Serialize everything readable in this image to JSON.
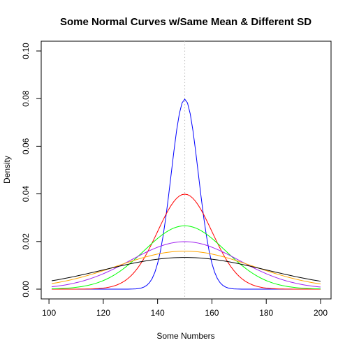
{
  "chart_data": {
    "type": "line",
    "title": "Some Normal Curves w/Same Mean & Different SD",
    "xlabel": "Some Numbers",
    "ylabel": "Density",
    "xlim": [
      101,
      200
    ],
    "ylim": [
      0,
      0.1
    ],
    "x_ticks": [
      100,
      120,
      140,
      160,
      180,
      200
    ],
    "y_ticks": [
      0.0,
      0.02,
      0.04,
      0.06,
      0.08,
      0.1
    ],
    "x_tick_labels": [
      "100",
      "120",
      "140",
      "160",
      "180",
      "200"
    ],
    "y_tick_labels": [
      "0.00",
      "0.02",
      "0.04",
      "0.06",
      "0.08",
      "0.10"
    ],
    "mean_line": {
      "x": 150,
      "color": "#bbbbbb",
      "style": "dotted"
    },
    "x": [
      101,
      102,
      103,
      104,
      105,
      106,
      107,
      108,
      109,
      110,
      111,
      112,
      113,
      114,
      115,
      116,
      117,
      118,
      119,
      120,
      121,
      122,
      123,
      124,
      125,
      126,
      127,
      128,
      129,
      130,
      131,
      132,
      133,
      134,
      135,
      136,
      137,
      138,
      139,
      140,
      141,
      142,
      143,
      144,
      145,
      146,
      147,
      148,
      149,
      150,
      151,
      152,
      153,
      154,
      155,
      156,
      157,
      158,
      159,
      160,
      161,
      162,
      163,
      164,
      165,
      166,
      167,
      168,
      169,
      170,
      171,
      172,
      173,
      174,
      175,
      176,
      177,
      178,
      179,
      180,
      181,
      182,
      183,
      184,
      185,
      186,
      187,
      188,
      189,
      190,
      191,
      192,
      193,
      194,
      195,
      196,
      197,
      198,
      199,
      200
    ],
    "series": [
      {
        "mean": 150,
        "sd": 5,
        "color": "#0000ff"
      },
      {
        "mean": 150,
        "sd": 10,
        "color": "#ff0000"
      },
      {
        "mean": 150,
        "sd": 15,
        "color": "#00ff00"
      },
      {
        "mean": 150,
        "sd": 20,
        "color": "#a020f0"
      },
      {
        "mean": 150,
        "sd": 25,
        "color": "#ffa500"
      },
      {
        "mean": 150,
        "sd": 30,
        "color": "#000000"
      }
    ]
  }
}
